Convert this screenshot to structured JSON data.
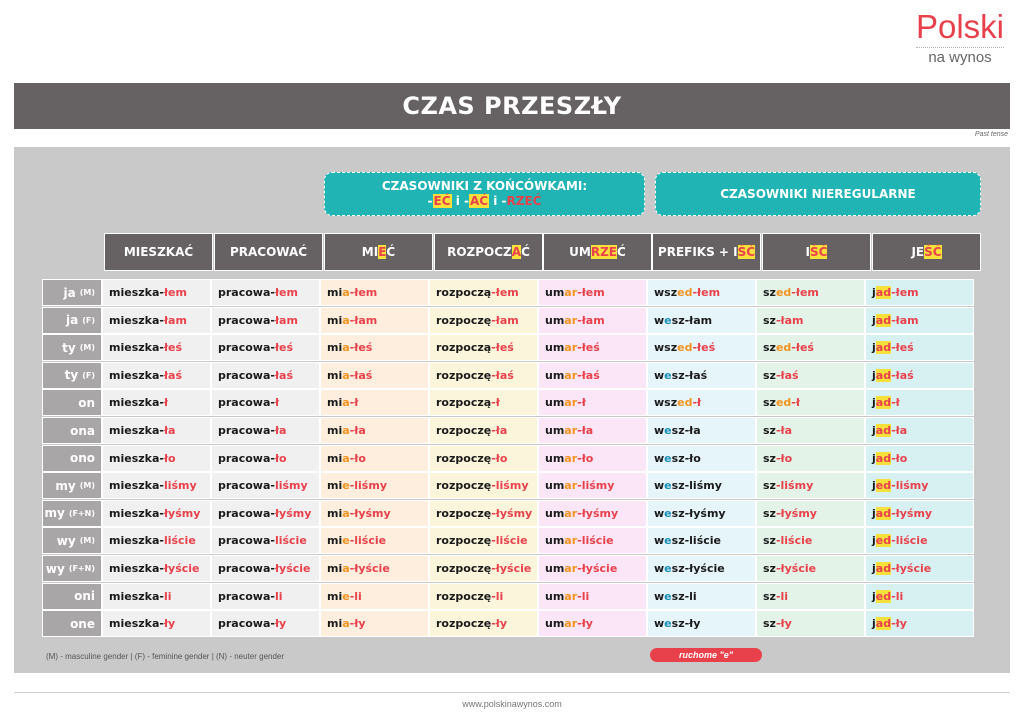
{
  "logo": {
    "word": "Polski",
    "sub": "na wynos"
  },
  "title": "CZAS PRZESZŁY",
  "subtitle": "Past tense",
  "group_headers": {
    "endings": {
      "line1": "CZASOWNIKI Z KOŃCÓWKAMI:",
      "parts": [
        "-",
        "EĆ",
        " i -",
        "AĆ",
        " i -",
        "RZEĆ"
      ]
    },
    "irregular": "CZASOWNIKI NIEREGULARNE"
  },
  "columns": [
    {
      "pre": "MIESZKAĆ",
      "hl": "",
      "post": ""
    },
    {
      "pre": "PRACOWAĆ",
      "hl": "",
      "post": ""
    },
    {
      "pre": "MI",
      "hl": "E",
      "post": "Ć"
    },
    {
      "pre": "ROZPOCZ",
      "hl": "A",
      "post": "Ć"
    },
    {
      "pre": "UM",
      "hl": "RZE",
      "post": "Ć"
    },
    {
      "pre": "PREFIKS + I",
      "hl": "ŚĆ",
      "post": ""
    },
    {
      "pre": "I",
      "hl": "ŚĆ",
      "post": ""
    },
    {
      "pre": "JE",
      "hl": "ŚĆ",
      "post": ""
    }
  ],
  "rows": [
    {
      "label": "ja",
      "gender": "(M)",
      "cells": [
        [
          "mieszka-",
          "łem"
        ],
        [
          "pracowa-",
          "łem"
        ],
        [
          "mi",
          "a",
          "-łem"
        ],
        [
          "rozpoczą",
          "-łem"
        ],
        [
          "um",
          "ar",
          "-łem"
        ],
        [
          "w",
          "sz",
          "ed",
          "-łem"
        ],
        [
          "sz",
          "ed",
          "-łem"
        ],
        [
          "j",
          "ad",
          "-łem"
        ]
      ]
    },
    {
      "label": "ja",
      "gender": "(F)",
      "cells": [
        [
          "mieszka-",
          "łam"
        ],
        [
          "pracowa-",
          "łam"
        ],
        [
          "mi",
          "a",
          "-łam"
        ],
        [
          "rozpoczę",
          "-łam"
        ],
        [
          "um",
          "ar",
          "-łam"
        ],
        [
          "w",
          "e",
          "sz-łam"
        ],
        [
          "sz",
          "",
          "-łam"
        ],
        [
          "j",
          "ad",
          "-łam"
        ]
      ]
    },
    {
      "label": "ty",
      "gender": "(M)",
      "cells": [
        [
          "mieszka-",
          "łeś"
        ],
        [
          "pracowa-",
          "łeś"
        ],
        [
          "mi",
          "a",
          "-łeś"
        ],
        [
          "rozpoczą",
          "-łeś"
        ],
        [
          "um",
          "ar",
          "-łeś"
        ],
        [
          "w",
          "sz",
          "ed",
          "-łeś"
        ],
        [
          "sz",
          "ed",
          "-łeś"
        ],
        [
          "j",
          "ad",
          "-łeś"
        ]
      ]
    },
    {
      "label": "ty",
      "gender": "(F)",
      "cells": [
        [
          "mieszka-",
          "łaś"
        ],
        [
          "pracowa-",
          "łaś"
        ],
        [
          "mi",
          "a",
          "-łaś"
        ],
        [
          "rozpoczę",
          "-łaś"
        ],
        [
          "um",
          "ar",
          "-łaś"
        ],
        [
          "w",
          "e",
          "sz-łaś"
        ],
        [
          "sz",
          "",
          "-łaś"
        ],
        [
          "j",
          "ad",
          "-łaś"
        ]
      ]
    },
    {
      "label": "on",
      "gender": "",
      "cells": [
        [
          "mieszka-",
          "ł"
        ],
        [
          "pracowa-",
          "ł"
        ],
        [
          "mi",
          "a",
          "-ł"
        ],
        [
          "rozpoczą",
          "-ł"
        ],
        [
          "um",
          "ar",
          "-ł"
        ],
        [
          "w",
          "sz",
          "ed",
          "-ł"
        ],
        [
          "sz",
          "ed",
          "-ł"
        ],
        [
          "j",
          "ad",
          "-ł"
        ]
      ]
    },
    {
      "label": "ona",
      "gender": "",
      "cells": [
        [
          "mieszka-",
          "ła"
        ],
        [
          "pracowa-",
          "ła"
        ],
        [
          "mi",
          "a",
          "-ła"
        ],
        [
          "rozpoczę",
          "-ła"
        ],
        [
          "um",
          "ar",
          "-ła"
        ],
        [
          "w",
          "e",
          "sz-ła"
        ],
        [
          "sz",
          "",
          "-ła"
        ],
        [
          "j",
          "ad",
          "-ła"
        ]
      ]
    },
    {
      "label": "ono",
      "gender": "",
      "cells": [
        [
          "mieszka-",
          "ło"
        ],
        [
          "pracowa-",
          "ło"
        ],
        [
          "mi",
          "a",
          "-ło"
        ],
        [
          "rozpoczę",
          "-ło"
        ],
        [
          "um",
          "ar",
          "-ło"
        ],
        [
          "w",
          "e",
          "sz-ło"
        ],
        [
          "sz",
          "",
          "-ło"
        ],
        [
          "j",
          "ad",
          "-ło"
        ]
      ]
    },
    {
      "label": "my",
      "gender": "(M)",
      "cells": [
        [
          "mieszka-",
          "liśmy"
        ],
        [
          "pracowa-",
          "liśmy"
        ],
        [
          "mi",
          "e",
          "-liśmy"
        ],
        [
          "rozpoczę",
          "-liśmy"
        ],
        [
          "um",
          "ar",
          "-liśmy"
        ],
        [
          "w",
          "e",
          "sz-liśmy"
        ],
        [
          "sz",
          "",
          "-liśmy"
        ],
        [
          "j",
          "ed",
          "-liśmy"
        ]
      ]
    },
    {
      "label": "my",
      "gender": "(F+N)",
      "cells": [
        [
          "mieszka-",
          "łyśmy"
        ],
        [
          "pracowa-",
          "łyśmy"
        ],
        [
          "mi",
          "a",
          "-łyśmy"
        ],
        [
          "rozpoczę",
          "-łyśmy"
        ],
        [
          "um",
          "ar",
          "-łyśmy"
        ],
        [
          "w",
          "e",
          "sz-łyśmy"
        ],
        [
          "sz",
          "",
          "-łyśmy"
        ],
        [
          "j",
          "ad",
          "-łyśmy"
        ]
      ]
    },
    {
      "label": "wy",
      "gender": "(M)",
      "cells": [
        [
          "mieszka-",
          "liście"
        ],
        [
          "pracowa-",
          "liście"
        ],
        [
          "mi",
          "e",
          "-liście"
        ],
        [
          "rozpoczę",
          "-liście"
        ],
        [
          "um",
          "ar",
          "-liście"
        ],
        [
          "w",
          "e",
          "sz-liście"
        ],
        [
          "sz",
          "",
          "-liście"
        ],
        [
          "j",
          "ed",
          "-liście"
        ]
      ]
    },
    {
      "label": "wy",
      "gender": "(F+N)",
      "cells": [
        [
          "mieszka-",
          "łyście"
        ],
        [
          "pracowa-",
          "łyście"
        ],
        [
          "mi",
          "a",
          "-łyście"
        ],
        [
          "rozpoczę",
          "-łyście"
        ],
        [
          "um",
          "ar",
          "-łyście"
        ],
        [
          "w",
          "e",
          "sz-łyście"
        ],
        [
          "sz",
          "",
          "-łyście"
        ],
        [
          "j",
          "ad",
          "-łyście"
        ]
      ]
    },
    {
      "label": "oni",
      "gender": "",
      "cells": [
        [
          "mieszka-",
          "li"
        ],
        [
          "pracowa-",
          "li"
        ],
        [
          "mi",
          "e",
          "-li"
        ],
        [
          "rozpoczę",
          "-li"
        ],
        [
          "um",
          "ar",
          "-li"
        ],
        [
          "w",
          "e",
          "sz-li"
        ],
        [
          "sz",
          "",
          "-li"
        ],
        [
          "j",
          "ed",
          "-li"
        ]
      ]
    },
    {
      "label": "one",
      "gender": "",
      "cells": [
        [
          "mieszka-",
          "ły"
        ],
        [
          "pracowa-",
          "ły"
        ],
        [
          "mi",
          "a",
          "-ły"
        ],
        [
          "rozpoczę",
          "-ły"
        ],
        [
          "um",
          "ar",
          "-ły"
        ],
        [
          "w",
          "e",
          "sz-ły"
        ],
        [
          "sz",
          "",
          "-ły"
        ],
        [
          "j",
          "ad",
          "-ły"
        ]
      ]
    }
  ],
  "legend": "(M) - masculine gender | (F) - feminine gender | (N) - neuter gender",
  "ruchome": "ruchome \"e\"",
  "footer": "www.polskinawynos.com"
}
